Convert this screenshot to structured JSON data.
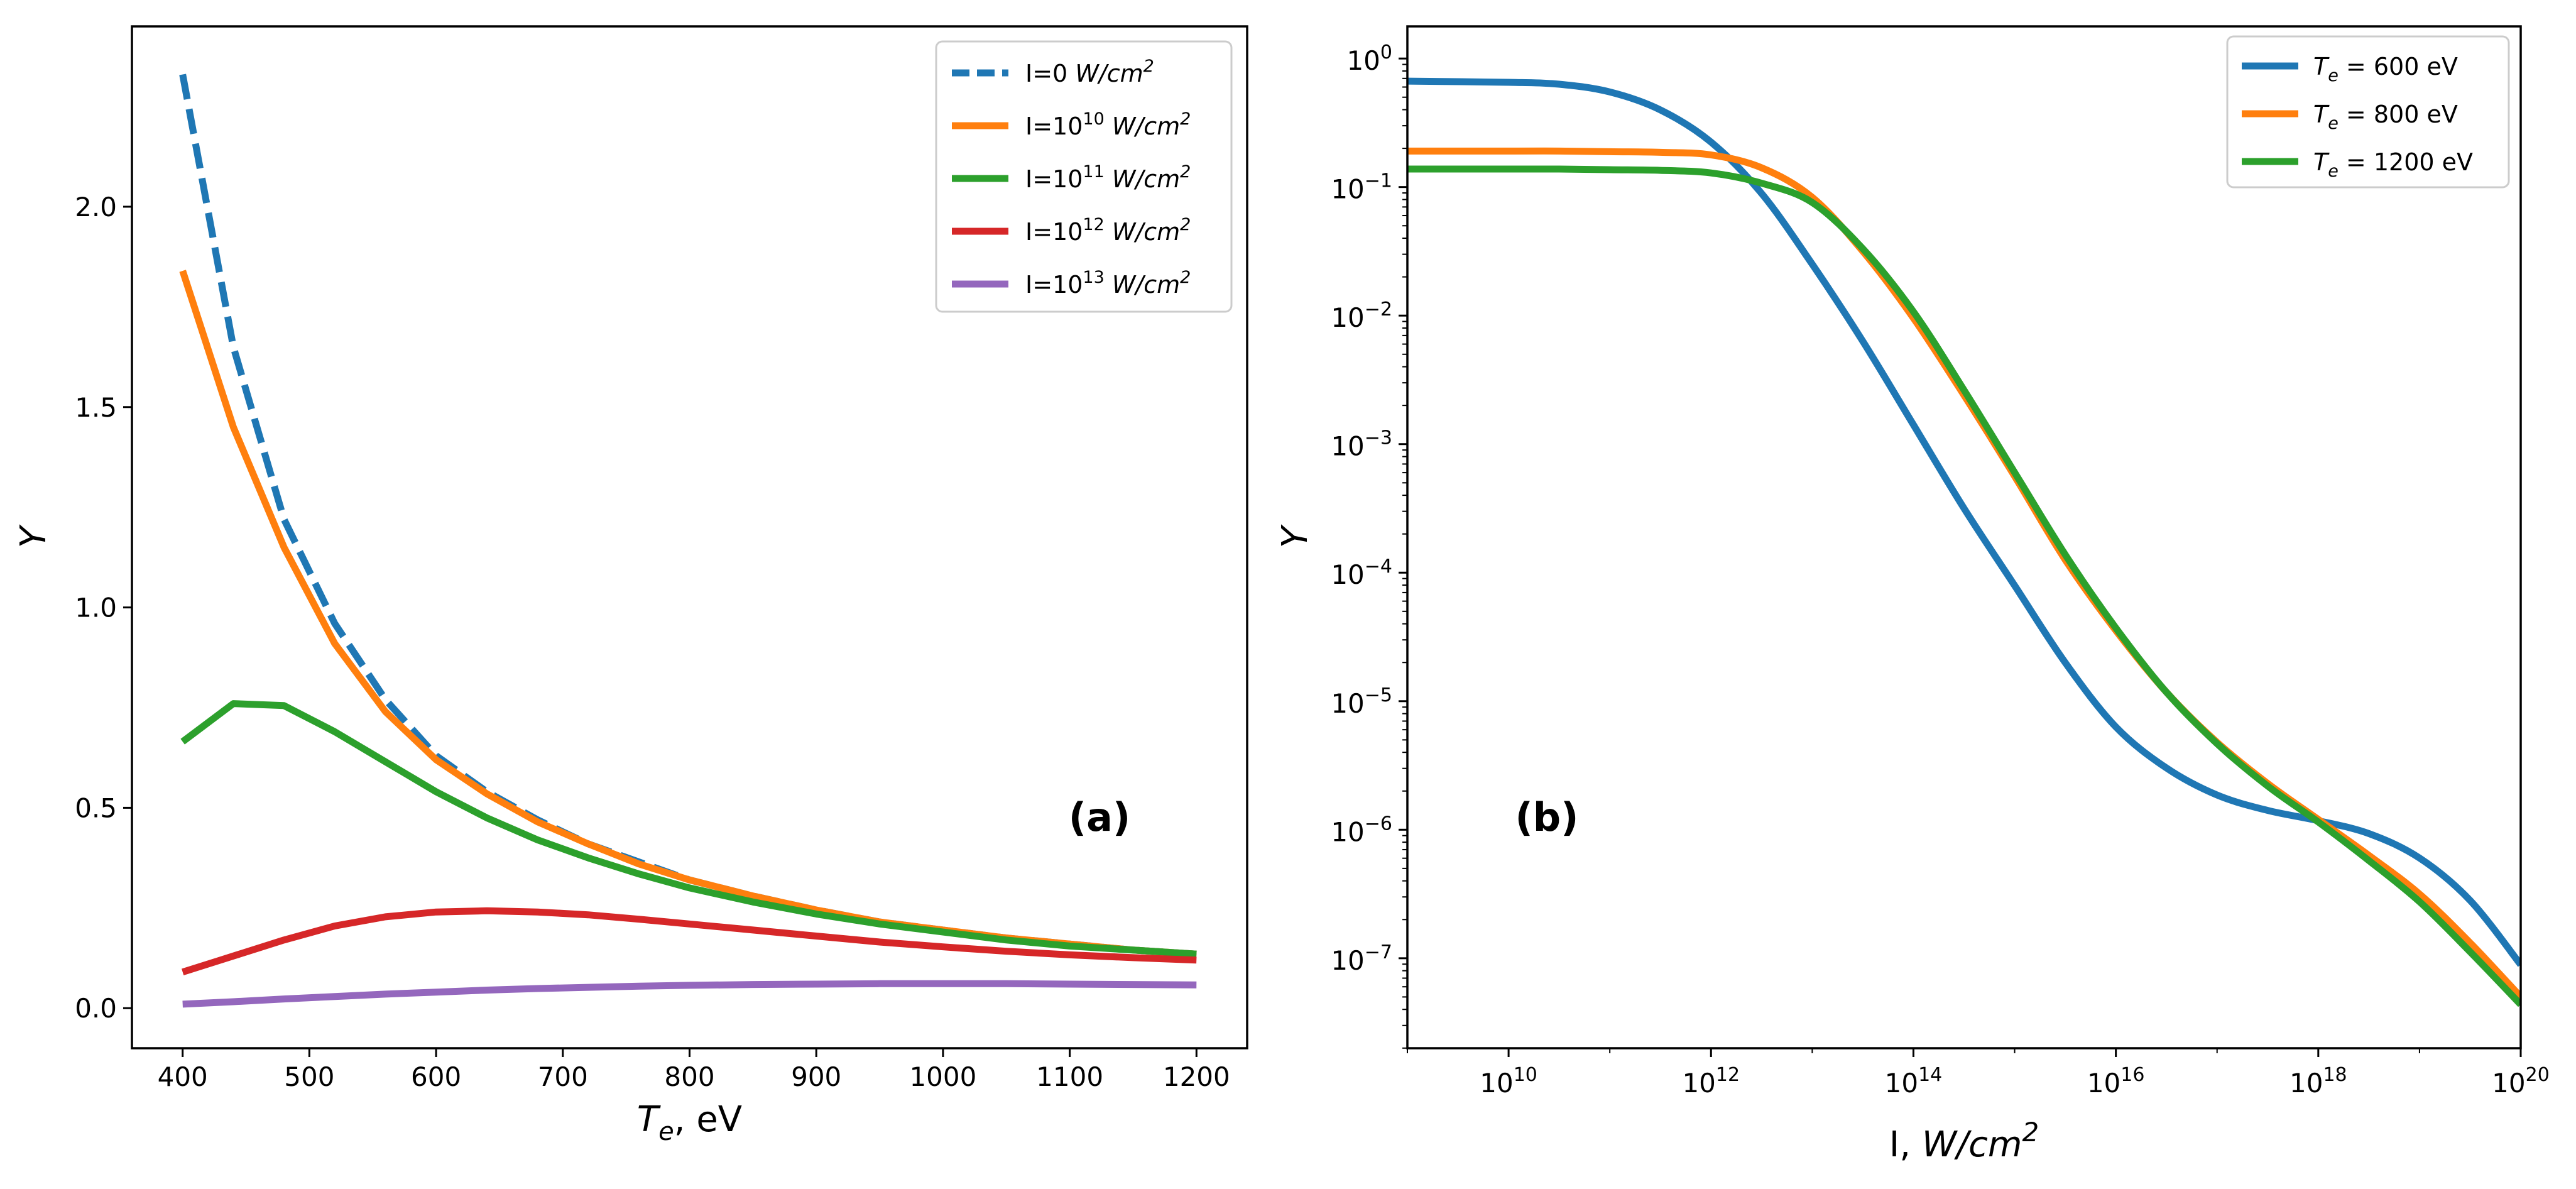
{
  "chart_data": [
    {
      "type": "line",
      "panel_label": "(a)",
      "xlabel": "T_e, eV",
      "ylabel": "Y",
      "xlim": [
        360,
        1240
      ],
      "ylim": [
        -0.1,
        2.45
      ],
      "xscale": "linear",
      "yscale": "linear",
      "grid": false,
      "legend_position": "top-right",
      "x_ticks": [
        400,
        500,
        600,
        700,
        800,
        900,
        1000,
        1100,
        1200
      ],
      "y_ticks": [
        0.0,
        0.5,
        1.0,
        1.5,
        2.0
      ],
      "x_tick_labels": [
        "400",
        "500",
        "600",
        "700",
        "800",
        "900",
        "1000",
        "1100",
        "1200"
      ],
      "y_tick_labels": [
        "0.0",
        "0.5",
        "1.0",
        "1.5",
        "2.0"
      ],
      "x": [
        400,
        440,
        480,
        520,
        560,
        600,
        640,
        680,
        720,
        760,
        800,
        850,
        900,
        950,
        1000,
        1050,
        1100,
        1150,
        1200
      ],
      "series": [
        {
          "name": "I=0 W/cm²",
          "legend_prefix": "I=0 ",
          "legend_unit": "W/cm",
          "legend_sup": "2",
          "color": "#1f77b4",
          "dashed": true,
          "values": [
            2.33,
            1.65,
            1.22,
            0.96,
            0.77,
            0.63,
            0.54,
            0.47,
            0.41,
            0.365,
            0.32,
            0.28,
            0.245,
            0.215,
            0.195,
            0.175,
            0.16,
            0.145,
            0.135
          ]
        },
        {
          "name": "I=10¹⁰ W/cm²",
          "legend_prefix": "I=10",
          "legend_exp": "10",
          "legend_unit": " W/cm",
          "legend_sup": "2",
          "color": "#ff7f0e",
          "dashed": false,
          "values": [
            1.84,
            1.45,
            1.15,
            0.91,
            0.74,
            0.62,
            0.535,
            0.465,
            0.41,
            0.36,
            0.32,
            0.28,
            0.245,
            0.215,
            0.195,
            0.175,
            0.16,
            0.145,
            0.135
          ]
        },
        {
          "name": "I=10¹¹ W/cm²",
          "legend_prefix": "I=10",
          "legend_exp": "11",
          "legend_unit": " W/cm",
          "legend_sup": "2",
          "color": "#2ca02c",
          "dashed": false,
          "values": [
            0.665,
            0.76,
            0.755,
            0.69,
            0.615,
            0.54,
            0.475,
            0.42,
            0.375,
            0.335,
            0.3,
            0.265,
            0.235,
            0.21,
            0.19,
            0.17,
            0.155,
            0.145,
            0.135
          ]
        },
        {
          "name": "I=10¹² W/cm²",
          "legend_prefix": "I=10",
          "legend_exp": "12",
          "legend_unit": " W/cm",
          "legend_sup": "2",
          "color": "#d62728",
          "dashed": false,
          "values": [
            0.09,
            0.13,
            0.17,
            0.205,
            0.228,
            0.24,
            0.243,
            0.24,
            0.233,
            0.222,
            0.21,
            0.195,
            0.18,
            0.165,
            0.153,
            0.142,
            0.133,
            0.126,
            0.12
          ]
        },
        {
          "name": "I=10¹³ W/cm²",
          "legend_prefix": "I=10",
          "legend_exp": "13",
          "legend_unit": " W/cm",
          "legend_sup": "2",
          "color": "#9467bd",
          "dashed": false,
          "values": [
            0.01,
            0.016,
            0.023,
            0.029,
            0.035,
            0.04,
            0.045,
            0.049,
            0.052,
            0.055,
            0.057,
            0.059,
            0.06,
            0.061,
            0.061,
            0.061,
            0.06,
            0.059,
            0.058
          ]
        }
      ]
    },
    {
      "type": "line",
      "panel_label": "(b)",
      "xlabel": "I, W/cm²",
      "ylabel": "Y",
      "xlim_log10": [
        9,
        20
      ],
      "ylim_log10": [
        -7.7,
        0.25
      ],
      "xscale": "log",
      "yscale": "log",
      "grid": false,
      "legend_position": "top-right",
      "x_tick_exponents": [
        "10",
        "12",
        "14",
        "16",
        "18",
        "20"
      ],
      "y_tick_exponents": [
        "0",
        "-1",
        "-2",
        "-3",
        "-4",
        "-5",
        "-6",
        "-7"
      ],
      "x_log10": [
        9,
        10,
        10.5,
        11,
        11.5,
        12,
        12.5,
        13,
        13.5,
        14,
        14.5,
        15,
        15.5,
        16,
        16.5,
        17,
        17.5,
        18,
        18.5,
        19,
        19.5,
        20
      ],
      "series": [
        {
          "name": "Te = 600 eV",
          "legend_prefix": "T",
          "legend_sub": "e",
          "legend_value": " = 600 eV",
          "color": "#1f77b4",
          "log10_values": [
            -0.176,
            -0.185,
            -0.2,
            -0.26,
            -0.4,
            -0.65,
            -1.05,
            -1.6,
            -2.2,
            -2.85,
            -3.5,
            -4.1,
            -4.7,
            -5.2,
            -5.52,
            -5.73,
            -5.85,
            -5.93,
            -6.03,
            -6.22,
            -6.55,
            -7.05
          ]
        },
        {
          "name": "Te = 800 eV",
          "legend_prefix": "T",
          "legend_sub": "e",
          "legend_value": " = 800 eV",
          "color": "#ff7f0e",
          "log10_values": [
            -0.72,
            -0.72,
            -0.72,
            -0.725,
            -0.73,
            -0.75,
            -0.85,
            -1.08,
            -1.5,
            -2.02,
            -2.62,
            -3.25,
            -3.9,
            -4.45,
            -4.93,
            -5.32,
            -5.64,
            -5.92,
            -6.2,
            -6.5,
            -6.88,
            -7.3
          ]
        },
        {
          "name": "Te = 1200 eV",
          "legend_prefix": "T",
          "legend_sub": "e",
          "legend_value": " = 1200 eV",
          "color": "#2ca02c",
          "log10_values": [
            -0.86,
            -0.86,
            -0.86,
            -0.865,
            -0.87,
            -0.89,
            -0.97,
            -1.12,
            -1.48,
            -1.97,
            -2.58,
            -3.22,
            -3.86,
            -4.43,
            -4.93,
            -5.33,
            -5.66,
            -5.94,
            -6.24,
            -6.56,
            -6.95,
            -7.36
          ]
        }
      ]
    }
  ]
}
